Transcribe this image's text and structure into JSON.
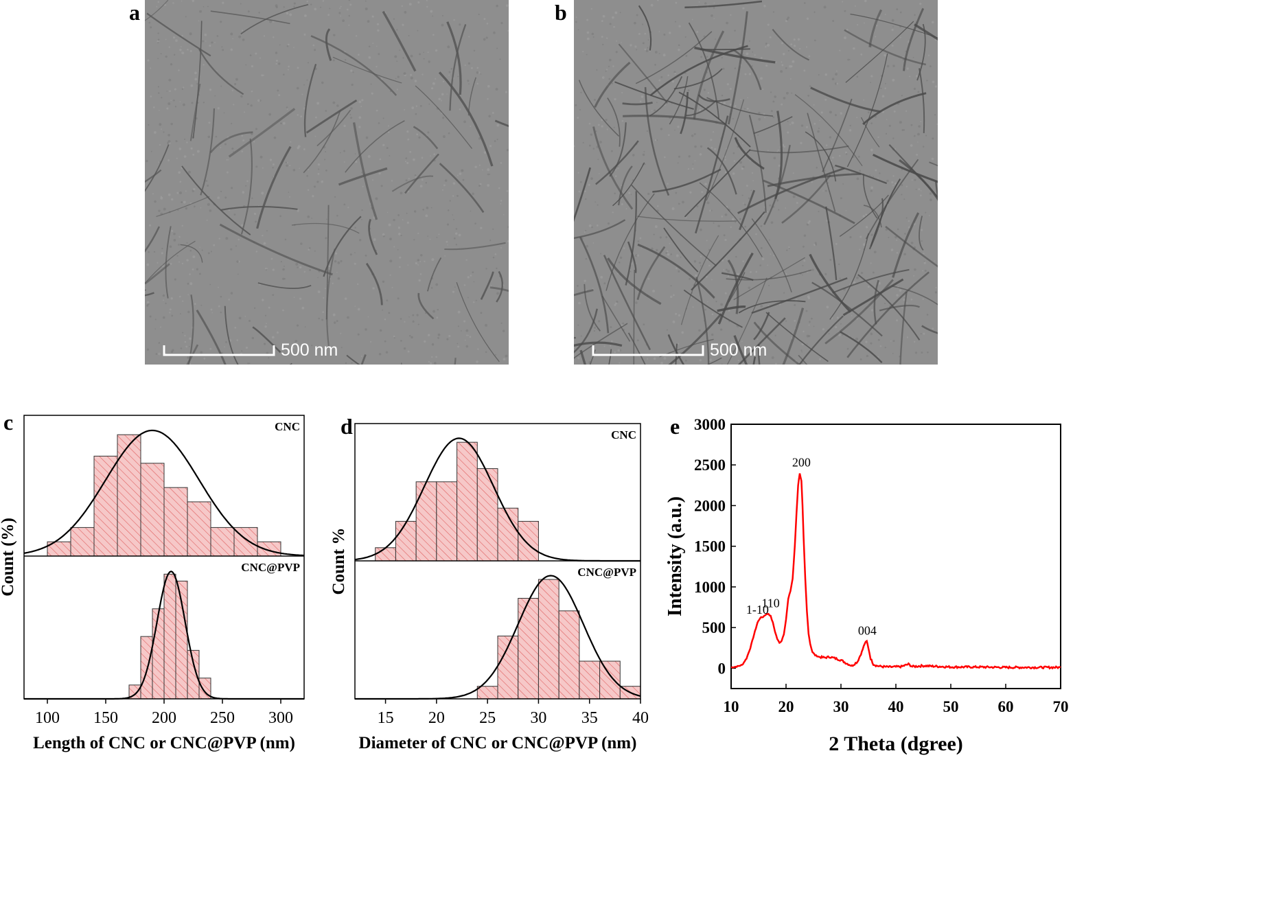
{
  "panels": {
    "a": {
      "letter": "a",
      "scale_label": "500 nm"
    },
    "b": {
      "letter": "b",
      "scale_label": "500 nm"
    },
    "c": {
      "letter": "c"
    },
    "d": {
      "letter": "d"
    },
    "e": {
      "letter": "e"
    }
  },
  "colors": {
    "bar_fill": "#f6c8c8",
    "bar_hatch": "#e06060",
    "curve": "#000000",
    "xrd_line": "#ff0000",
    "tem_bg": "#8e8e8e"
  },
  "chart_data": [
    {
      "id": "c",
      "type": "bar",
      "xlabel": "Length of CNC or CNC@PVP  (nm)",
      "ylabel": "Count (%)",
      "xlim": [
        80,
        320
      ],
      "xticks": [
        100,
        150,
        200,
        250,
        300
      ],
      "series": [
        {
          "name": "CNC",
          "bin_width": 20,
          "bins": [
            100,
            120,
            140,
            160,
            180,
            200,
            220,
            240,
            260,
            280
          ],
          "values": [
            1,
            2,
            7,
            8.5,
            6.5,
            4.8,
            3.8,
            2,
            2,
            1
          ],
          "fit": {
            "mean": 190,
            "sd": 40,
            "peak": 8.8
          }
        },
        {
          "name": "CNC@PVP",
          "bin_width": 10,
          "bins": [
            170,
            180,
            190,
            200,
            210,
            220,
            230
          ],
          "values": [
            1,
            4.5,
            6.5,
            9,
            8.5,
            3.5,
            1.5
          ],
          "fit": {
            "mean": 206,
            "sd": 12,
            "peak": 9.2
          }
        }
      ]
    },
    {
      "id": "d",
      "type": "bar",
      "xlabel": "Diameter of CNC or CNC@PVP (nm)",
      "ylabel": "Count %",
      "xlim": [
        12,
        40
      ],
      "xticks": [
        15,
        20,
        25,
        30,
        35,
        40
      ],
      "series": [
        {
          "name": "CNC",
          "bin_width": 2,
          "bins": [
            14,
            16,
            18,
            20,
            22,
            24,
            26,
            28
          ],
          "values": [
            1,
            3,
            6,
            6,
            9,
            7,
            4,
            3
          ],
          "fit": {
            "mean": 22.2,
            "sd": 3.4,
            "peak": 9.3
          }
        },
        {
          "name": "CNC@PVP",
          "bin_width": 2,
          "bins": [
            24,
            26,
            28,
            30,
            32,
            34,
            36,
            38
          ],
          "values": [
            1,
            5,
            8,
            9.5,
            7,
            3,
            3,
            1
          ],
          "fit": {
            "mean": 31.2,
            "sd": 3.2,
            "peak": 9.8
          }
        }
      ]
    },
    {
      "id": "e",
      "type": "line",
      "xlabel": "2 Theta (dgree)",
      "ylabel": "Intensity (a.u.)",
      "xlim": [
        10,
        70
      ],
      "ylim": [
        -250,
        3000
      ],
      "xticks": [
        10,
        20,
        30,
        40,
        50,
        60,
        70
      ],
      "yticks": [
        0,
        500,
        1000,
        1500,
        2000,
        2500,
        3000
      ],
      "series": [
        {
          "name": "",
          "x": [
            10,
            11,
            12,
            12.8,
            13.5,
            14.2,
            14.8,
            15.3,
            15.8,
            16.3,
            16.8,
            17.2,
            17.6,
            18.0,
            18.4,
            18.8,
            19.2,
            19.6,
            20.0,
            20.4,
            20.8,
            21.2,
            21.6,
            21.9,
            22.2,
            22.5,
            22.8,
            23.0,
            23.2,
            23.5,
            23.8,
            24.1,
            24.4,
            24.8,
            25.3,
            26,
            27,
            28,
            29,
            30,
            31,
            32,
            33,
            33.8,
            34.3,
            34.7,
            35.0,
            35.4,
            35.9,
            36.5,
            37.5,
            39,
            41,
            42.3,
            43,
            45,
            50,
            55,
            60,
            65,
            70
          ],
          "y": [
            10,
            20,
            40,
            120,
            250,
            420,
            560,
            620,
            630,
            660,
            670,
            640,
            560,
            450,
            360,
            310,
            340,
            420,
            600,
            850,
            950,
            1100,
            1500,
            1900,
            2250,
            2400,
            2300,
            2000,
            1600,
            1100,
            700,
            430,
            300,
            200,
            160,
            140,
            130,
            140,
            120,
            100,
            60,
            30,
            80,
            200,
            300,
            330,
            250,
            120,
            50,
            30,
            20,
            15,
            20,
            50,
            20,
            30,
            15,
            15,
            10,
            10,
            10
          ]
        }
      ],
      "annotations": [
        {
          "text": "1-10",
          "x": 14.8,
          "y": 620
        },
        {
          "text": "110",
          "x": 17.2,
          "y": 700
        },
        {
          "text": "200",
          "x": 22.8,
          "y": 2430
        },
        {
          "text": "004",
          "x": 34.8,
          "y": 360
        }
      ]
    }
  ]
}
